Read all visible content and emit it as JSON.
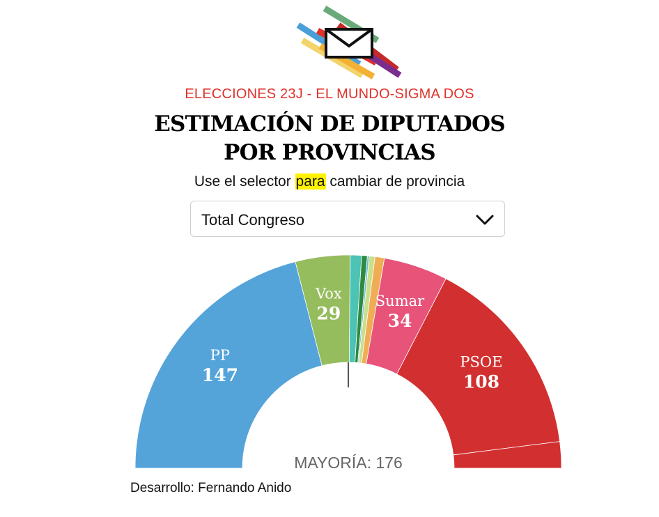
{
  "header": {
    "kicker": "ELECCIONES 23J - EL MUNDO-SIGMA DOS",
    "title_line1": "ESTIMACIÓN DE DIPUTADOS",
    "title_line2": "POR PROVINCIAS",
    "subtitle_before": "Use el selector ",
    "subtitle_highlight": "para",
    "subtitle_after": " cambiar de provincia"
  },
  "selector": {
    "selected": "Total Congreso"
  },
  "logo": {
    "icon": "ballot-envelope-icon",
    "colors": [
      "#6aaa7a",
      "#4a9fd8",
      "#e0312a",
      "#f2b035",
      "#f2d46a",
      "#7b2d8e",
      "#c62828"
    ]
  },
  "chart_data": {
    "type": "parliament-semicircle",
    "total_seats": 350,
    "majority_text": "MAYORÍA: 176",
    "majority": 176,
    "parties": [
      {
        "name": "PP",
        "seats": 147,
        "color": "#54a4da",
        "show_label": true
      },
      {
        "name": "Vox",
        "seats": 29,
        "color": "#95bc5d",
        "show_label": true
      },
      {
        "name": "",
        "seats": 6,
        "color": "#4cc3b5",
        "show_label": false
      },
      {
        "name": "",
        "seats": 3,
        "color": "#2e8b3e",
        "show_label": false
      },
      {
        "name": "",
        "seats": 1,
        "color": "#6ab8e2",
        "show_label": false
      },
      {
        "name": "",
        "seats": 3,
        "color": "#c9df89",
        "show_label": false
      },
      {
        "name": "",
        "seats": 5,
        "color": "#f0ad55",
        "show_label": false
      },
      {
        "name": "Sumar",
        "seats": 34,
        "color": "#e8537a",
        "show_label": true
      },
      {
        "name": "PSOE",
        "seats": 108,
        "color": "#d23030",
        "show_label": true
      },
      {
        "name": "",
        "seats": 14,
        "color": "#d23030",
        "show_label": false
      }
    ]
  },
  "footer": {
    "credit": "Desarrollo: Fernando Anido"
  }
}
